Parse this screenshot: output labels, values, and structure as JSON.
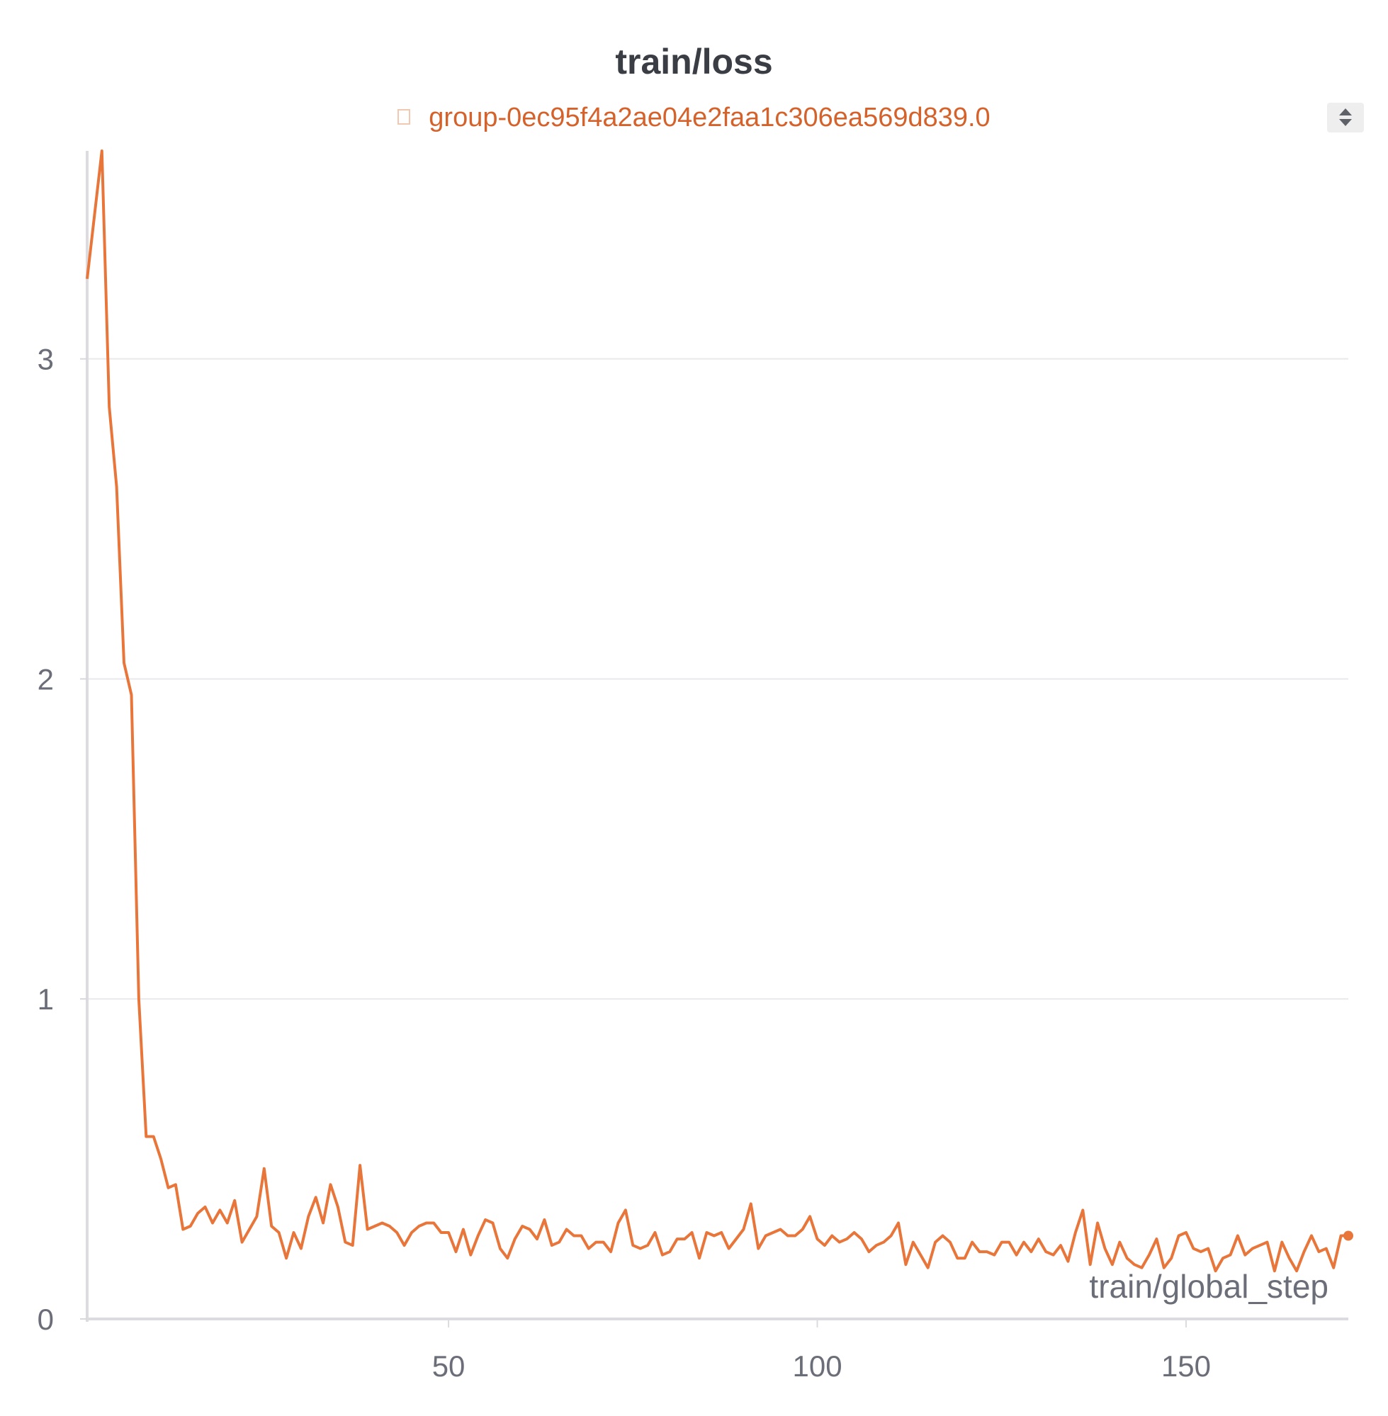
{
  "panel": {
    "title": "train/loss",
    "legend_label": "group-0ec95f4a2ae04e2faa1c306ea569d839.0",
    "line_color": "#e8763a",
    "legend_color": "#d4622a",
    "scroll_icon": "sort-arrows-icon"
  },
  "chart_data": {
    "type": "line",
    "title": "train/loss",
    "xlabel": "train/global_step",
    "ylabel": "",
    "xlim": [
      1,
      172
    ],
    "ylim": [
      0,
      3.65
    ],
    "x_ticks": [
      50,
      100,
      150
    ],
    "y_ticks": [
      0,
      1,
      2,
      3
    ],
    "grid": true,
    "legend_position": "top-center",
    "series": [
      {
        "name": "group-0ec95f4a2ae04e2faa1c306ea569d839.0",
        "x": [
          1,
          2,
          3,
          4,
          5,
          6,
          7,
          8,
          9,
          10,
          11,
          12,
          13,
          14,
          15,
          16,
          17,
          18,
          19,
          20,
          21,
          22,
          23,
          24,
          25,
          26,
          27,
          28,
          29,
          30,
          31,
          32,
          33,
          34,
          35,
          36,
          37,
          38,
          39,
          40,
          41,
          42,
          43,
          44,
          45,
          46,
          47,
          48,
          49,
          50,
          51,
          52,
          53,
          54,
          55,
          56,
          57,
          58,
          59,
          60,
          61,
          62,
          63,
          64,
          65,
          66,
          67,
          68,
          69,
          70,
          71,
          72,
          73,
          74,
          75,
          76,
          77,
          78,
          79,
          80,
          81,
          82,
          83,
          84,
          85,
          86,
          87,
          88,
          89,
          90,
          91,
          92,
          93,
          94,
          95,
          96,
          97,
          98,
          99,
          100,
          101,
          102,
          103,
          104,
          105,
          106,
          107,
          108,
          109,
          110,
          111,
          112,
          113,
          114,
          115,
          116,
          117,
          118,
          119,
          120,
          121,
          122,
          123,
          124,
          125,
          126,
          127,
          128,
          129,
          130,
          131,
          132,
          133,
          134,
          135,
          136,
          137,
          138,
          139,
          140,
          141,
          142,
          143,
          144,
          145,
          146,
          147,
          148,
          149,
          150,
          151,
          152,
          153,
          154,
          155,
          156,
          157,
          158,
          159,
          160,
          161,
          162,
          163,
          164,
          165,
          166,
          167,
          168,
          169,
          170,
          171,
          172
        ],
        "y": [
          3.25,
          3.45,
          3.65,
          2.85,
          2.6,
          2.05,
          1.95,
          1.0,
          0.57,
          0.57,
          0.5,
          0.41,
          0.42,
          0.28,
          0.29,
          0.33,
          0.35,
          0.3,
          0.34,
          0.3,
          0.37,
          0.24,
          0.28,
          0.32,
          0.47,
          0.29,
          0.27,
          0.19,
          0.27,
          0.22,
          0.32,
          0.38,
          0.3,
          0.42,
          0.35,
          0.24,
          0.23,
          0.48,
          0.28,
          0.29,
          0.3,
          0.29,
          0.27,
          0.23,
          0.27,
          0.29,
          0.3,
          0.3,
          0.27,
          0.27,
          0.21,
          0.28,
          0.2,
          0.26,
          0.31,
          0.3,
          0.22,
          0.19,
          0.25,
          0.29,
          0.28,
          0.25,
          0.31,
          0.23,
          0.24,
          0.28,
          0.26,
          0.26,
          0.22,
          0.24,
          0.24,
          0.21,
          0.3,
          0.34,
          0.23,
          0.22,
          0.23,
          0.27,
          0.2,
          0.21,
          0.25,
          0.25,
          0.27,
          0.19,
          0.27,
          0.26,
          0.27,
          0.22,
          0.25,
          0.28,
          0.36,
          0.22,
          0.26,
          0.27,
          0.28,
          0.26,
          0.26,
          0.28,
          0.32,
          0.25,
          0.23,
          0.26,
          0.24,
          0.25,
          0.27,
          0.25,
          0.21,
          0.23,
          0.24,
          0.26,
          0.3,
          0.17,
          0.24,
          0.2,
          0.16,
          0.24,
          0.26,
          0.24,
          0.19,
          0.19,
          0.24,
          0.21,
          0.21,
          0.2,
          0.24,
          0.24,
          0.2,
          0.24,
          0.21,
          0.25,
          0.21,
          0.2,
          0.23,
          0.18,
          0.27,
          0.34,
          0.17,
          0.3,
          0.22,
          0.17,
          0.24,
          0.19,
          0.17,
          0.16,
          0.2,
          0.25,
          0.16,
          0.19,
          0.26,
          0.27,
          0.22,
          0.21,
          0.22,
          0.15,
          0.19,
          0.2,
          0.26,
          0.2,
          0.22,
          0.23,
          0.24,
          0.15,
          0.24,
          0.19,
          0.15,
          0.21,
          0.26,
          0.21,
          0.22,
          0.16,
          0.26,
          0.26
        ]
      }
    ]
  }
}
